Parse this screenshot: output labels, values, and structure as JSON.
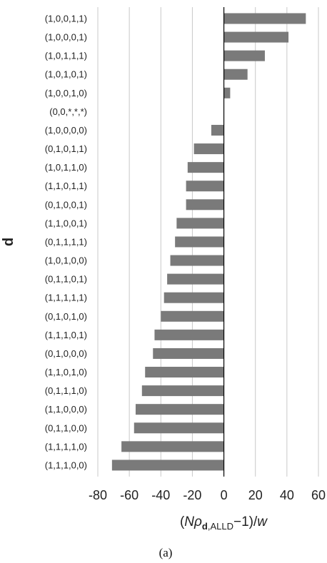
{
  "chart_data": {
    "type": "bar",
    "orientation": "horizontal",
    "categories": [
      "(1,0,0,1,1)",
      "(1,0,0,0,1)",
      "(1,0,1,1,1)",
      "(1,0,1,0,1)",
      "(1,0,0,1,0)",
      "(0,0,*,*,*)",
      "(1,0,0,0,0)",
      "(0,1,0,1,1)",
      "(1,0,1,1,0)",
      "(1,1,0,1,1)",
      "(0,1,0,0,1)",
      "(1,1,0,0,1)",
      "(0,1,1,1,1)",
      "(1,0,1,0,0)",
      "(0,1,1,0,1)",
      "(1,1,1,1,1)",
      "(0,1,0,1,0)",
      "(1,1,1,0,1)",
      "(0,1,0,0,0)",
      "(1,1,0,1,0)",
      "(0,1,1,1,0)",
      "(1,1,0,0,0)",
      "(0,1,1,0,0)",
      "(1,1,1,1,0)",
      "(1,1,1,0,0)"
    ],
    "values": [
      52,
      41,
      26,
      15,
      4,
      0,
      -8,
      -19,
      -23,
      -24,
      -24,
      -30,
      -31,
      -34,
      -36,
      -38,
      -40,
      -44,
      -45,
      -50,
      -52,
      -56,
      -57,
      -65,
      -71
    ],
    "ylabel": "d",
    "xlabel": "(Nρd,ALLD−1)/w",
    "xlim": [
      -80,
      60
    ],
    "xticks": [
      "-80",
      "-60",
      "-40",
      "-20",
      "0",
      "20",
      "40",
      "60"
    ],
    "grid": "vertical",
    "colors": {
      "bar": "#7a7a7a",
      "grid": "#c8c8c8",
      "axis": "#000000"
    }
  },
  "caption": "(a)"
}
